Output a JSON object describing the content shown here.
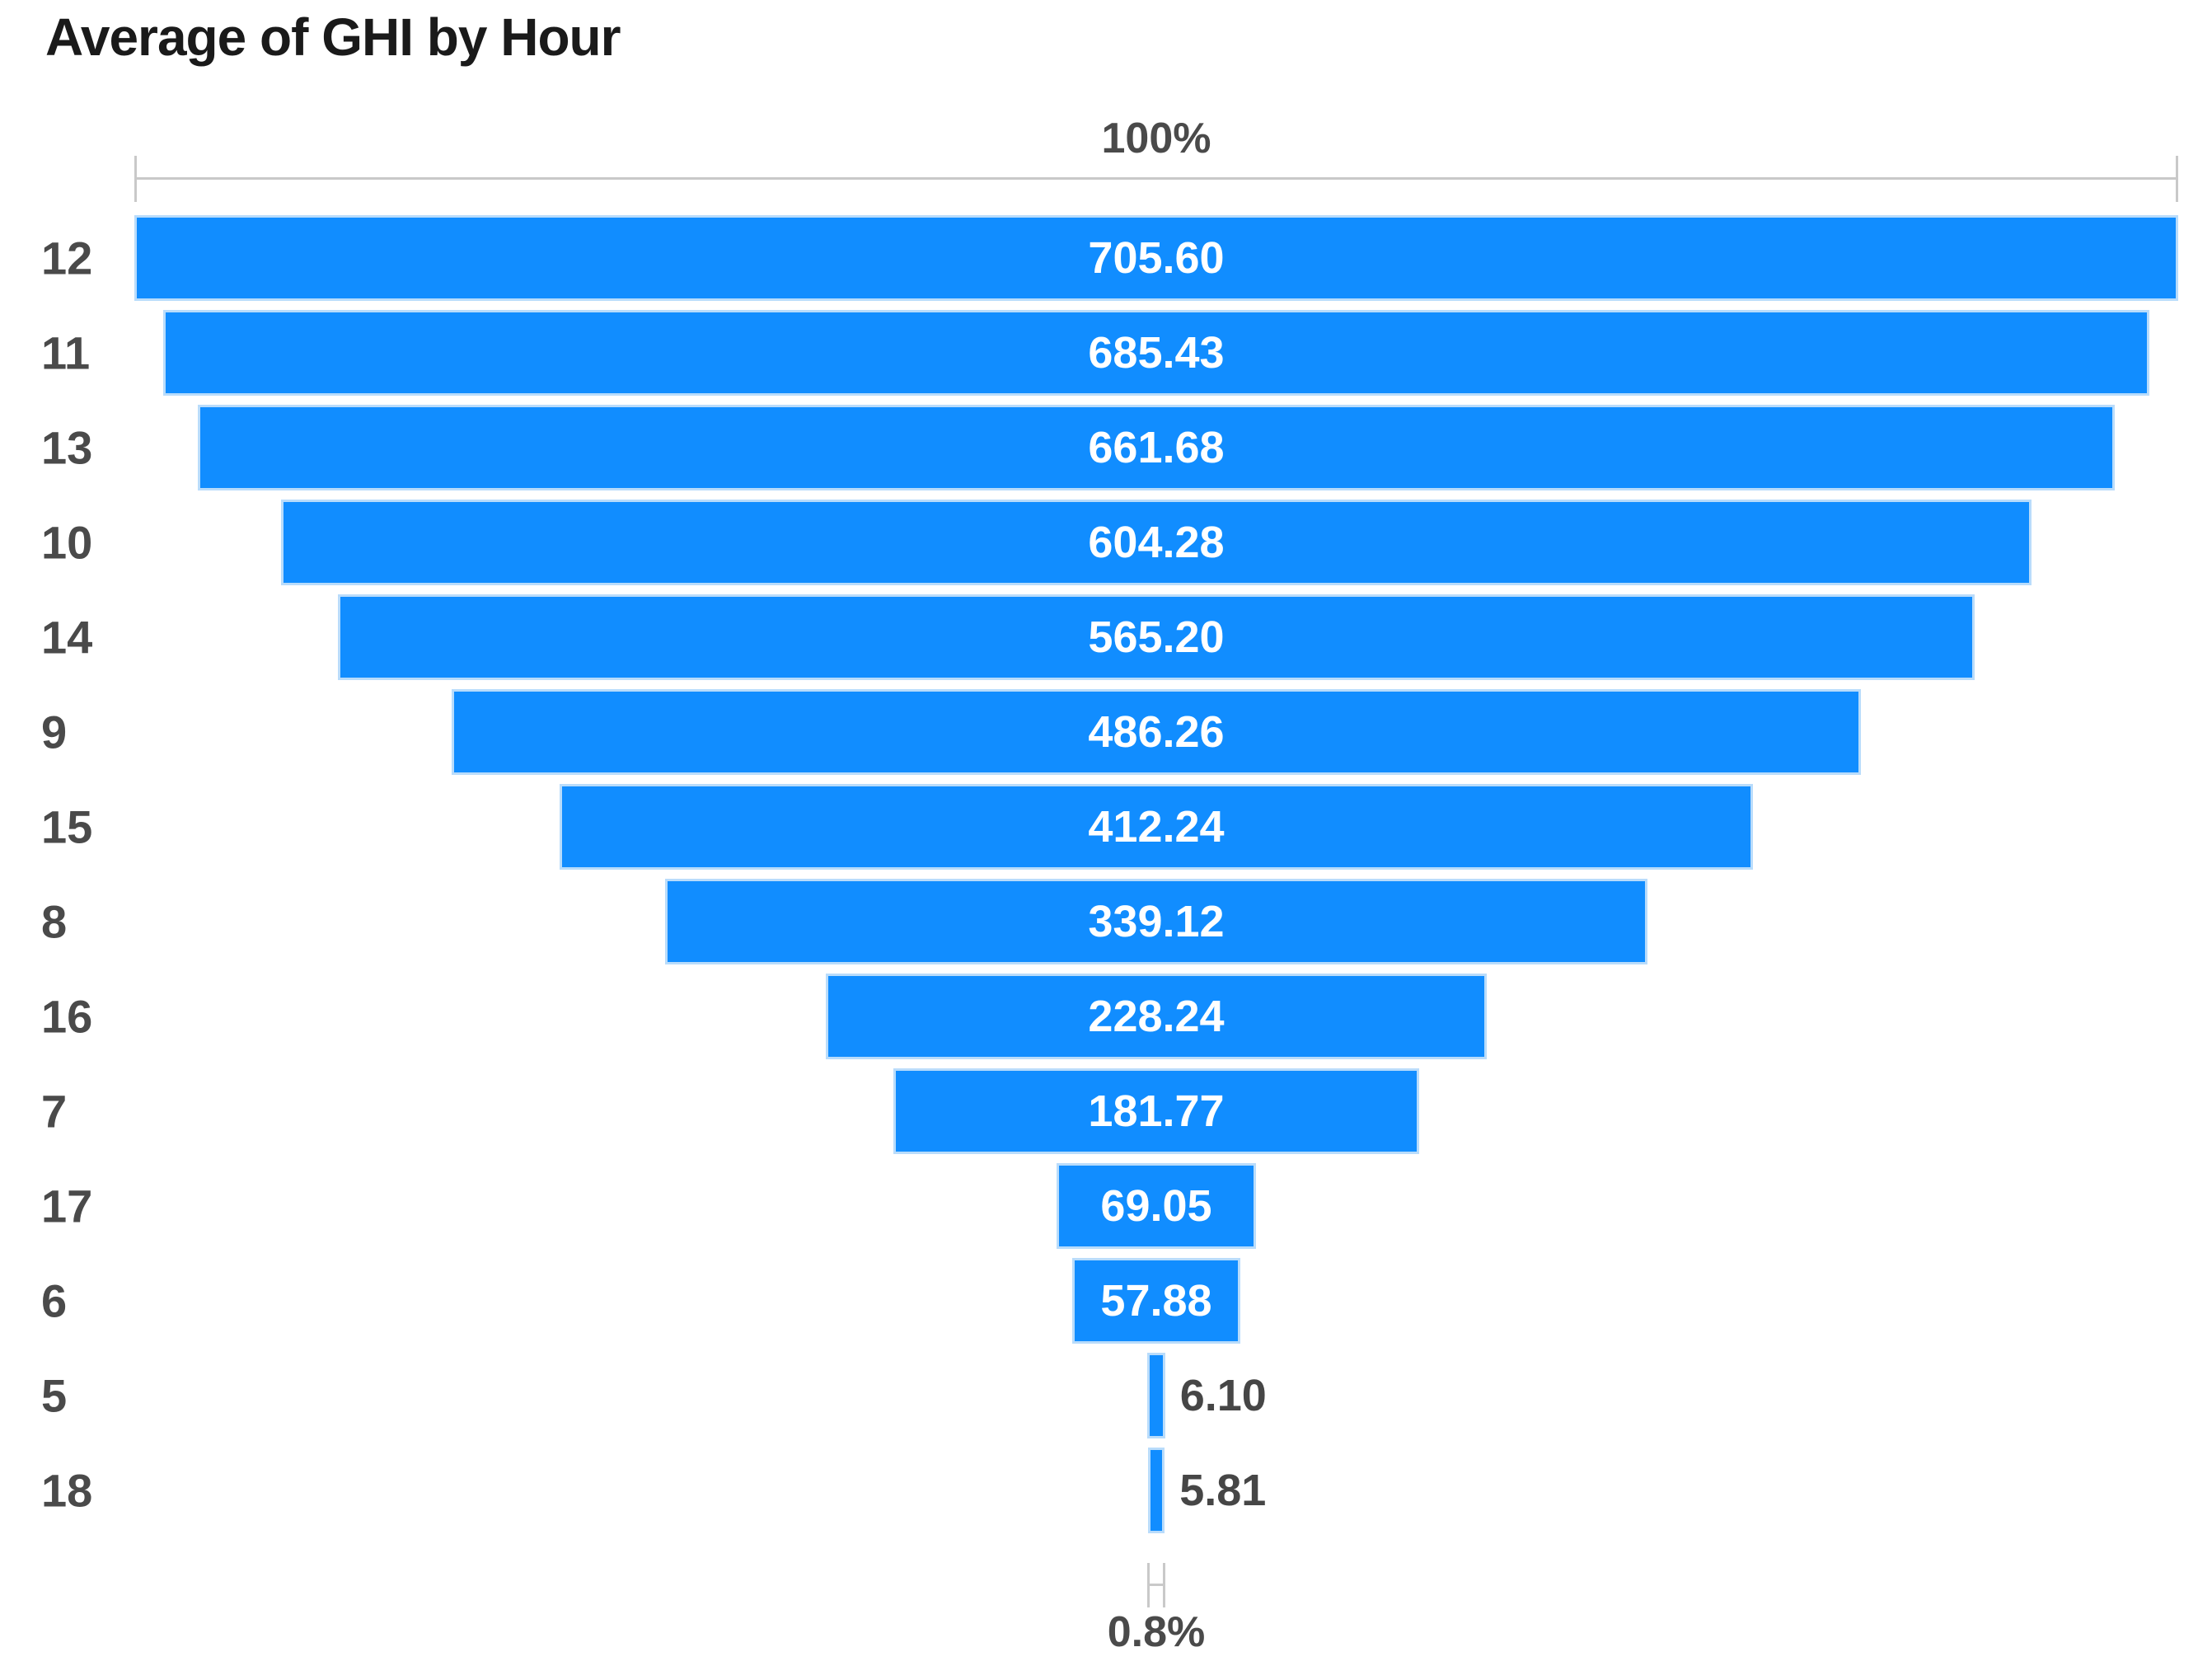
{
  "chart_data": {
    "type": "funnel",
    "title": "Average of GHI by Hour",
    "xlabel": "",
    "ylabel": "",
    "legend_position": "none",
    "grid": false,
    "categories": [
      "12",
      "11",
      "13",
      "10",
      "14",
      "9",
      "15",
      "8",
      "16",
      "7",
      "17",
      "6",
      "5",
      "18"
    ],
    "values": [
      705.6,
      685.43,
      661.68,
      604.28,
      565.2,
      486.26,
      412.24,
      339.12,
      228.24,
      181.77,
      69.05,
      57.88,
      6.1,
      5.81
    ],
    "display_values": [
      "705.60",
      "685.43",
      "661.68",
      "604.28",
      "565.20",
      "486.26",
      "412.24",
      "339.12",
      "228.24",
      "181.77",
      "69.05",
      "57.88",
      "6.10",
      "5.81"
    ],
    "top_percent_label": "100%",
    "bottom_percent_label": "0.8%",
    "xlim_percent": [
      0,
      100
    ]
  },
  "colors": {
    "bar_fill": "#118DFF",
    "bar_border": "#b9dcfb",
    "axis": "#c9c9c9",
    "text_gray": "#4a4a4a",
    "value_inside": "#ffffff",
    "title": "#1a1a1a",
    "background": "#ffffff"
  }
}
